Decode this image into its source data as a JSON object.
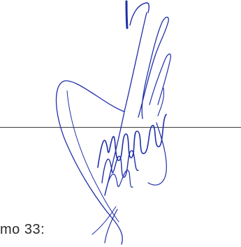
{
  "document": {
    "fragment_text": "mo 33:",
    "ink_color": "#1f2fa8",
    "line_color": "#3a3a3a"
  }
}
